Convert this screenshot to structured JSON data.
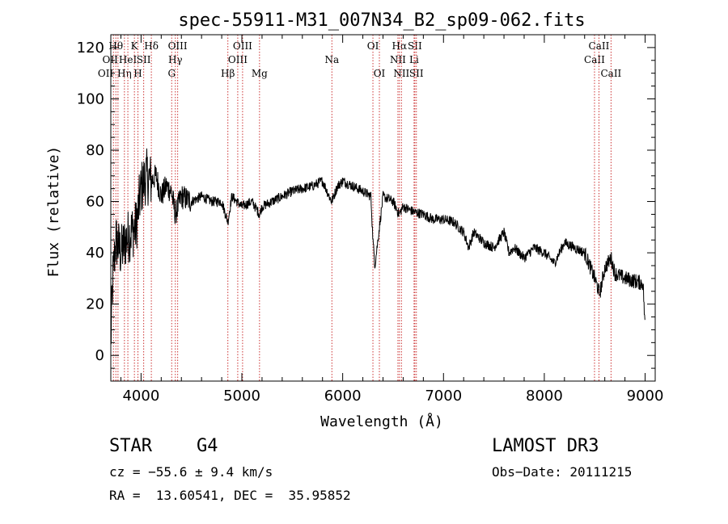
{
  "chart_data": {
    "type": "line",
    "title": "spec-55911-M31_007N34_B2_sp09-062.fits",
    "xlabel": "Wavelength (Å)",
    "ylabel": "Flux (relative)",
    "xlim": [
      3700,
      9100
    ],
    "ylim": [
      -10,
      125
    ],
    "xticks": [
      4000,
      5000,
      6000,
      7000,
      8000,
      9000
    ],
    "yticks": [
      0,
      20,
      40,
      60,
      80,
      100,
      120
    ],
    "line_color": "#000000",
    "marker_color": "#cc3333",
    "spectrum_anchors": {
      "x": [
        3700,
        3720,
        3750,
        3800,
        3850,
        3900,
        3950,
        4000,
        4050,
        4100,
        4150,
        4200,
        4250,
        4300,
        4340,
        4400,
        4500,
        4600,
        4700,
        4800,
        4861,
        4900,
        5000,
        5100,
        5175,
        5200,
        5300,
        5400,
        5500,
        5600,
        5700,
        5800,
        5890,
        5950,
        6000,
        6100,
        6200,
        6280,
        6300,
        6320,
        6400,
        6500,
        6560,
        6600,
        6700,
        6800,
        6900,
        7000,
        7100,
        7200,
        7250,
        7300,
        7400,
        7500,
        7600,
        7650,
        7700,
        7800,
        7900,
        8000,
        8100,
        8200,
        8300,
        8400,
        8500,
        8550,
        8600,
        8662,
        8700,
        8800,
        8900,
        8980,
        9000
      ],
      "y": [
        5,
        30,
        45,
        40,
        45,
        48,
        50,
        65,
        70,
        68,
        70,
        62,
        66,
        64,
        55,
        62,
        60,
        62,
        60,
        60,
        52,
        62,
        58,
        60,
        55,
        58,
        60,
        62,
        64,
        65,
        66,
        68,
        60,
        66,
        68,
        66,
        64,
        62,
        45,
        35,
        62,
        60,
        55,
        58,
        56,
        55,
        53,
        53,
        52,
        48,
        42,
        48,
        44,
        42,
        48,
        40,
        42,
        38,
        42,
        40,
        36,
        44,
        42,
        40,
        30,
        24,
        34,
        38,
        32,
        30,
        29,
        28,
        10
      ]
    },
    "line_markers": [
      {
        "x": 3726,
        "label": "OII",
        "row": 3,
        "anchor": "end"
      },
      {
        "x": 3750,
        "label": "Hθ",
        "row": 1,
        "anchor": "middle"
      },
      {
        "x": 3771,
        "label": "OII",
        "row": 2,
        "anchor": "end"
      },
      {
        "x": 3835,
        "label": "Hη",
        "row": 3,
        "anchor": "middle"
      },
      {
        "x": 3869,
        "label": "HeI",
        "row": 2,
        "anchor": "middle"
      },
      {
        "x": 3934,
        "label": "K",
        "row": 1,
        "anchor": "middle"
      },
      {
        "x": 3969,
        "label": "H",
        "row": 3,
        "anchor": "middle"
      },
      {
        "x": 4026,
        "label": "SII",
        "row": 2,
        "anchor": "middle"
      },
      {
        "x": 4102,
        "label": "Hδ",
        "row": 1,
        "anchor": "middle"
      },
      {
        "x": 4304,
        "label": "G",
        "row": 3,
        "anchor": "middle"
      },
      {
        "x": 4340,
        "label": "Hγ",
        "row": 2,
        "anchor": "middle"
      },
      {
        "x": 4363,
        "label": "OIII",
        "row": 1,
        "anchor": "middle"
      },
      {
        "x": 4861,
        "label": "Hβ",
        "row": 3,
        "anchor": "middle"
      },
      {
        "x": 4959,
        "label": "OIII",
        "row": 2,
        "anchor": "middle"
      },
      {
        "x": 5007,
        "label": "OIII",
        "row": 1,
        "anchor": "middle"
      },
      {
        "x": 5175,
        "label": "Mg",
        "row": 3,
        "anchor": "middle"
      },
      {
        "x": 5893,
        "label": "Na",
        "row": 2,
        "anchor": "middle"
      },
      {
        "x": 6300,
        "label": "OI",
        "row": 1,
        "anchor": "middle"
      },
      {
        "x": 6364,
        "label": "OI",
        "row": 3,
        "anchor": "middle"
      },
      {
        "x": 6548,
        "label": "NII",
        "row": 2,
        "anchor": "middle"
      },
      {
        "x": 6563,
        "label": "Hα",
        "row": 1,
        "anchor": "middle"
      },
      {
        "x": 6583,
        "label": "NII",
        "row": 3,
        "anchor": "middle"
      },
      {
        "x": 6708,
        "label": "Li",
        "row": 2,
        "anchor": "middle"
      },
      {
        "x": 6716,
        "label": "SII",
        "row": 1,
        "anchor": "middle"
      },
      {
        "x": 6731,
        "label": "SII",
        "row": 3,
        "anchor": "middle"
      },
      {
        "x": 8498,
        "label": "CaII",
        "row": 2,
        "anchor": "middle"
      },
      {
        "x": 8542,
        "label": "CaII",
        "row": 1,
        "anchor": "middle"
      },
      {
        "x": 8662,
        "label": "CaII",
        "row": 3,
        "anchor": "middle"
      }
    ]
  },
  "info": {
    "object_class": "STAR",
    "subclass": "G4",
    "survey": "LAMOST DR3",
    "cz": "cz = −55.6 ± 9.4 km/s",
    "obs_date": "Obs−Date: 20111215",
    "coords": "RA =  13.60541, DEC =  35.95852"
  }
}
